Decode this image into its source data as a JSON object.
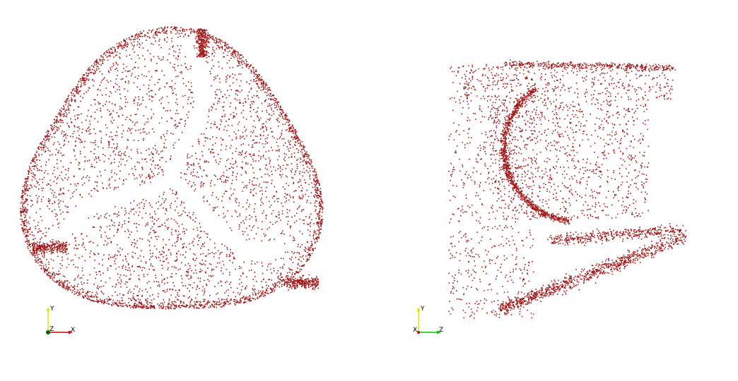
{
  "colors": {
    "background": "#ffffff",
    "point": "#a31a1a",
    "axis_x": "#d40000",
    "axis_y": "#e5e500",
    "axis_z": "#00c800",
    "origin": "#006400"
  },
  "viewports": [
    {
      "id": "left",
      "view": "front",
      "axes": {
        "vertical": "Y",
        "horizontal": "X",
        "depth": "Z"
      }
    },
    {
      "id": "right",
      "view": "side",
      "axes": {
        "vertical": "Y",
        "horizontal": "Z",
        "depth": "X"
      }
    }
  ]
}
